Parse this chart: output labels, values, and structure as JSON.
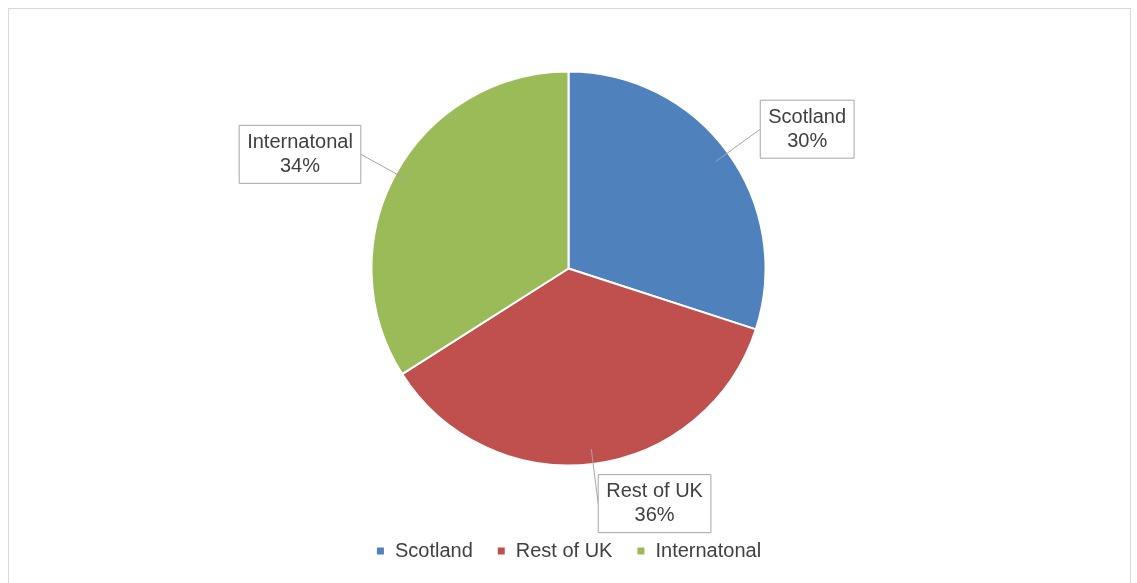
{
  "chart_data": {
    "type": "pie",
    "categories": [
      "Scotland",
      "Rest of UK",
      "Internatonal"
    ],
    "values": [
      30,
      36,
      34
    ],
    "colors": [
      "#4f81bd",
      "#c0504d",
      "#9bbb59"
    ],
    "value_labels": [
      "30%",
      "36%",
      "34%"
    ],
    "legend": "bottom"
  }
}
